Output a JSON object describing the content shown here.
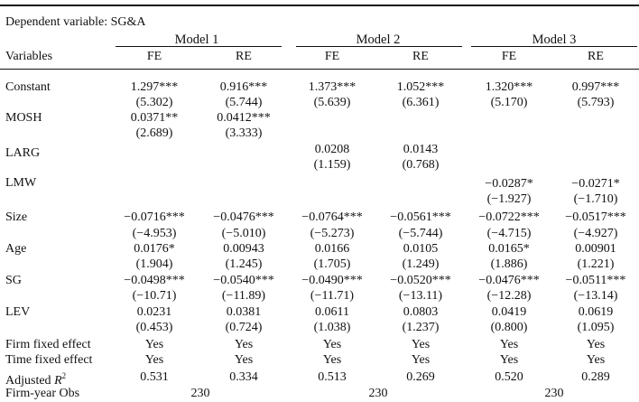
{
  "dependent_variable": "Dependent variable: SG&A",
  "models": [
    "Model 1",
    "Model 2",
    "Model 3"
  ],
  "variables_header": "Variables",
  "effects": [
    "FE",
    "RE",
    "FE",
    "RE",
    "FE",
    "RE"
  ],
  "rows": [
    {
      "label": "Constant",
      "coef": [
        "1.297***",
        "0.916***",
        "1.373***",
        "1.052***",
        "1.320***",
        "0.997***"
      ],
      "t": [
        "(5.302)",
        "(5.744)",
        "(5.639)",
        "(6.361)",
        "(5.170)",
        "(5.793)"
      ]
    },
    {
      "label": "MOSH",
      "coef": [
        "0.0371**",
        "0.0412***",
        "",
        "",
        "",
        ""
      ],
      "t": [
        "(2.689)",
        "(3.333)",
        "",
        "",
        "",
        ""
      ]
    },
    {
      "label": "LARG",
      "coef": [
        "",
        "",
        "0.0208",
        "0.0143",
        "",
        ""
      ],
      "t": [
        "",
        "",
        "(1.159)",
        "(0.768)",
        "",
        ""
      ]
    },
    {
      "label": "LMW",
      "coef": [
        "",
        "",
        "",
        "",
        "−0.0287*",
        "−0.0271*"
      ],
      "t": [
        "",
        "",
        "",
        "",
        "(−1.927)",
        "(−1.710)"
      ]
    },
    {
      "label": "Size",
      "coef": [
        "−0.0716***",
        "−0.0476***",
        "−0.0764***",
        "−0.0561***",
        "−0.0722***",
        "−0.0517***"
      ],
      "t": [
        "(−4.953)",
        "(−5.010)",
        "(−5.273)",
        "(−5.744)",
        "(−4.715)",
        "(−4.927)"
      ]
    },
    {
      "label": "Age",
      "coef": [
        "0.0176*",
        "0.00943",
        "0.0166",
        "0.0105",
        "0.0165*",
        "0.00901"
      ],
      "t": [
        "(1.904)",
        "(1.245)",
        "(1.705)",
        "(1.249)",
        "(1.886)",
        "(1.221)"
      ]
    },
    {
      "label": "SG",
      "coef": [
        "−0.0498***",
        "−0.0540***",
        "−0.0490***",
        "−0.0520***",
        "−0.0476***",
        "−0.0511***"
      ],
      "t": [
        "(−10.71)",
        "(−11.89)",
        "(−11.71)",
        "(−13.11)",
        "(−12.28)",
        "(−13.14)"
      ]
    },
    {
      "label": "LEV",
      "coef": [
        "0.0231",
        "0.0381",
        "0.0611",
        "0.0803",
        "0.0419",
        "0.0619"
      ],
      "t": [
        "(0.453)",
        "(0.724)",
        "(1.038)",
        "(1.237)",
        "(0.800)",
        "(1.095)"
      ]
    }
  ],
  "firm_fixed": {
    "label": "Firm fixed effect",
    "values": [
      "Yes",
      "Yes",
      "Yes",
      "Yes",
      "Yes",
      "Yes"
    ]
  },
  "time_fixed": {
    "label": "Time fixed effect",
    "values": [
      "Yes",
      "Yes",
      "Yes",
      "Yes",
      "Yes",
      "Yes"
    ]
  },
  "adj_r2": {
    "label_prefix": "Adjusted ",
    "label_symbol": "R",
    "label_sup": "2",
    "values": [
      "0.531",
      "0.334",
      "0.513",
      "0.269",
      "0.520",
      "0.289"
    ]
  },
  "obs": {
    "label": "Firm-year Obs",
    "values": [
      "230",
      "230",
      "230"
    ]
  }
}
